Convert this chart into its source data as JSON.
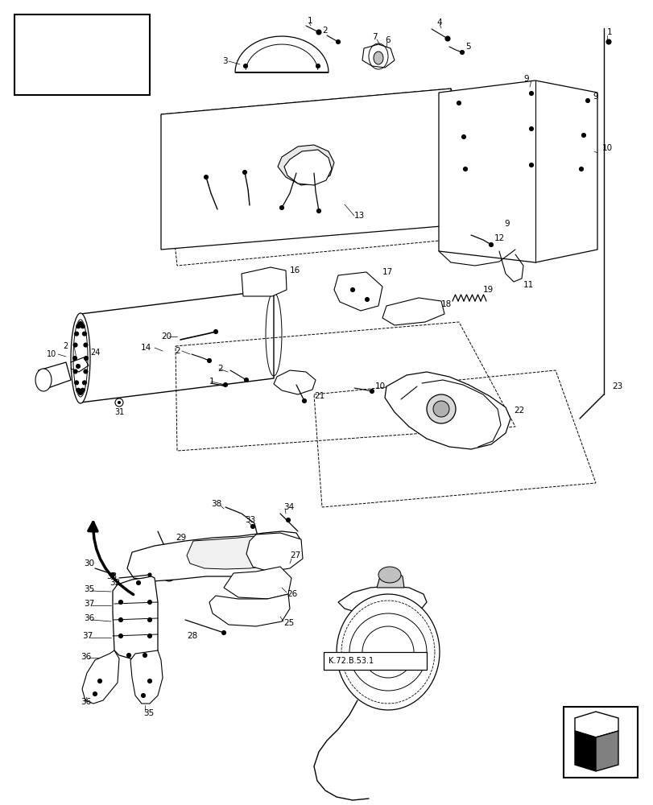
{
  "bg_color": "#ffffff",
  "lc": "#000000",
  "fig_width": 8.12,
  "fig_height": 10.0,
  "dpi": 100
}
